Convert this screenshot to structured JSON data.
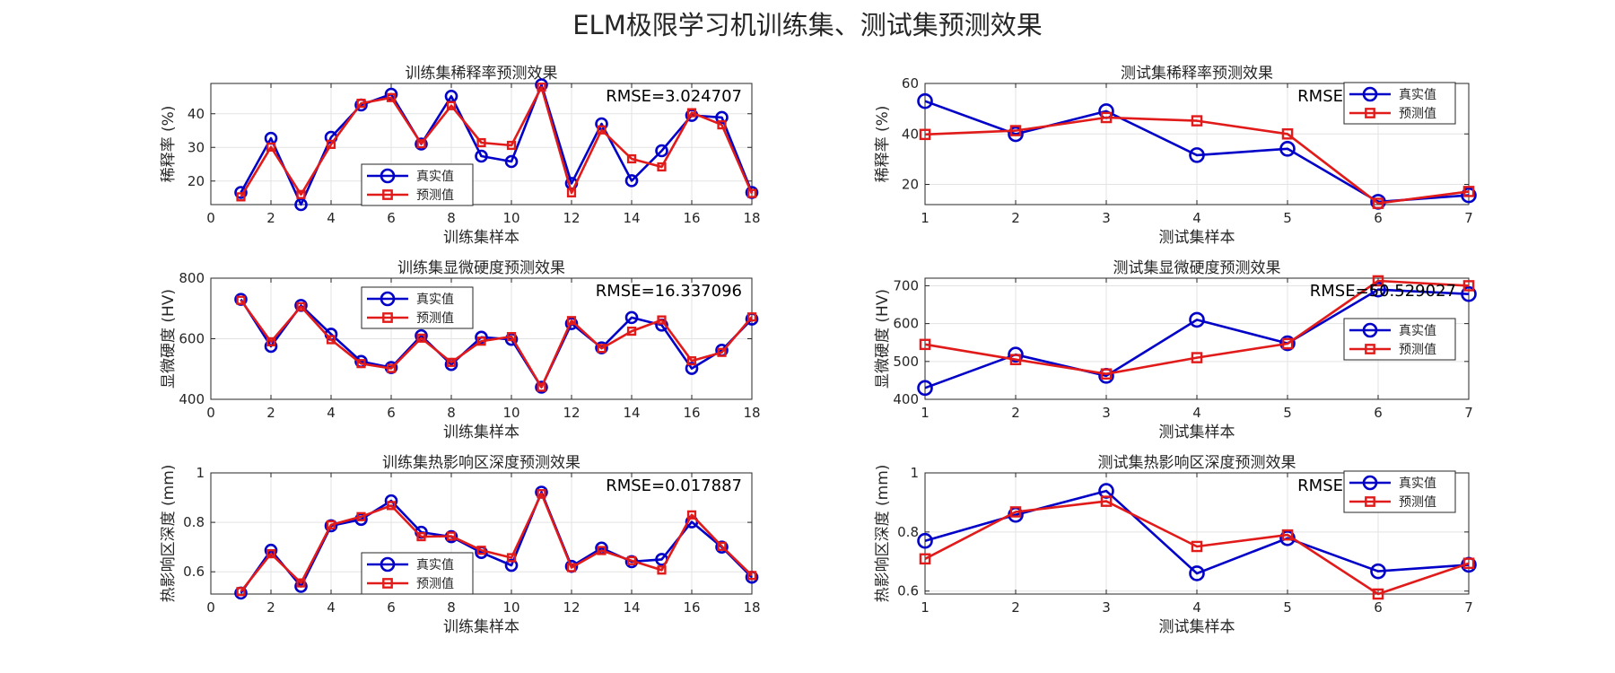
{
  "figure_title": "ELM极限学习机训练集、测试集预测效果",
  "colors": {
    "true": "#0000c8",
    "pred": "#e11a1a",
    "grid": "#e3e3e3",
    "axis": "#262626"
  },
  "chart_data": [
    {
      "id": "train-dilution",
      "type": "line",
      "title": "训练集稀释率预测效果",
      "xlabel": "训练集样本",
      "ylabel": "稀释率 (%)",
      "xlim": [
        0,
        18
      ],
      "ylim": [
        13,
        49
      ],
      "xticks": [
        0,
        2,
        4,
        6,
        8,
        10,
        12,
        14,
        16,
        18
      ],
      "yticks": [
        20,
        30,
        40
      ],
      "rmse": "RMSE=3.024707",
      "legend": "lower-center",
      "x": [
        1,
        2,
        3,
        4,
        5,
        6,
        7,
        8,
        9,
        10,
        11,
        12,
        13,
        14,
        15,
        16,
        17,
        18
      ],
      "series": [
        {
          "name": "真实值",
          "marker": "circle",
          "values": [
            16.6,
            32.7,
            13.0,
            33.0,
            42.6,
            45.8,
            31.0,
            45.2,
            27.4,
            25.8,
            48.6,
            19.3,
            37.0,
            20.1,
            29.0,
            39.5,
            38.9,
            16.6
          ]
        },
        {
          "name": "预测值",
          "marker": "square",
          "values": [
            15.3,
            30.1,
            16.0,
            30.9,
            43.1,
            44.8,
            31.1,
            42.4,
            31.4,
            30.6,
            47.9,
            16.5,
            35.2,
            26.6,
            24.2,
            40.3,
            36.7,
            16.3
          ]
        }
      ]
    },
    {
      "id": "test-dilution",
      "type": "line",
      "title": "测试集稀释率预测效果",
      "xlabel": "测试集样本",
      "ylabel": "稀释率 (%)",
      "xlim": [
        1,
        7
      ],
      "ylim": [
        12,
        60
      ],
      "xticks": [
        1,
        2,
        3,
        4,
        5,
        6,
        7
      ],
      "yticks": [
        20,
        40,
        60
      ],
      "rmse": "RMSE",
      "legend": "top-right",
      "x": [
        1,
        2,
        3,
        4,
        5,
        6,
        7
      ],
      "series": [
        {
          "name": "真实值",
          "marker": "circle",
          "values": [
            53.0,
            39.9,
            49.0,
            31.6,
            34.1,
            13.1,
            15.7
          ]
        },
        {
          "name": "预测值",
          "marker": "square",
          "values": [
            39.8,
            41.3,
            46.5,
            45.2,
            40.0,
            12.5,
            17.2
          ]
        }
      ]
    },
    {
      "id": "train-hardness",
      "type": "line",
      "title": "训练集显微硬度预测效果",
      "xlabel": "训练集样本",
      "ylabel": "显微硬度 (HV)",
      "xlim": [
        0,
        18
      ],
      "ylim": [
        400,
        800
      ],
      "xticks": [
        0,
        2,
        4,
        6,
        8,
        10,
        12,
        14,
        16,
        18
      ],
      "yticks": [
        400,
        600,
        800
      ],
      "rmse": "RMSE=16.337096",
      "legend": "top-center",
      "x": [
        1,
        2,
        3,
        4,
        5,
        6,
        7,
        8,
        9,
        10,
        11,
        12,
        13,
        14,
        15,
        16,
        17,
        18
      ],
      "series": [
        {
          "name": "真实值",
          "marker": "circle",
          "values": [
            730,
            575,
            710,
            615,
            525,
            505,
            610,
            515,
            605,
            598,
            440,
            650,
            570,
            670,
            645,
            502,
            562,
            665
          ]
        },
        {
          "name": "预测值",
          "marker": "square",
          "values": [
            727,
            590,
            706,
            597,
            518,
            502,
            602,
            522,
            592,
            607,
            440,
            660,
            568,
            625,
            662,
            527,
            555,
            672
          ]
        }
      ]
    },
    {
      "id": "test-hardness",
      "type": "line",
      "title": "测试集显微硬度预测效果",
      "xlabel": "测试集样本",
      "ylabel": "显微硬度 (HV)",
      "xlim": [
        1,
        7
      ],
      "ylim": [
        400,
        720
      ],
      "xticks": [
        1,
        2,
        3,
        4,
        5,
        6,
        7
      ],
      "yticks": [
        400,
        500,
        600,
        700
      ],
      "rmse": "RMSE=50.529027",
      "legend": "middle-right",
      "x": [
        1,
        2,
        3,
        4,
        5,
        6,
        7
      ],
      "series": [
        {
          "name": "真实值",
          "marker": "circle",
          "values": [
            430,
            518,
            462,
            610,
            548,
            690,
            678
          ]
        },
        {
          "name": "预测值",
          "marker": "square",
          "values": [
            545,
            505,
            467,
            510,
            547,
            713,
            700
          ]
        }
      ]
    },
    {
      "id": "train-haz-depth",
      "type": "line",
      "title": "训练集热影响区深度预测效果",
      "xlabel": "训练集样本",
      "ylabel": "热影响区深度 (mm)",
      "xlim": [
        0,
        18
      ],
      "ylim": [
        0.51,
        1.0
      ],
      "xticks": [
        0,
        2,
        4,
        6,
        8,
        10,
        12,
        14,
        16,
        18
      ],
      "yticks": [
        0.6,
        0.8,
        1
      ],
      "rmse": "RMSE=0.017887",
      "legend": "lower-center",
      "x": [
        1,
        2,
        3,
        4,
        5,
        6,
        7,
        8,
        9,
        10,
        11,
        12,
        13,
        14,
        15,
        16,
        17,
        18
      ],
      "series": [
        {
          "name": "真实值",
          "marker": "circle",
          "values": [
            0.514,
            0.687,
            0.541,
            0.786,
            0.812,
            0.887,
            0.76,
            0.742,
            0.678,
            0.626,
            0.922,
            0.622,
            0.696,
            0.641,
            0.65,
            0.802,
            0.7,
            0.578
          ]
        },
        {
          "name": "预测值",
          "marker": "square",
          "values": [
            0.52,
            0.673,
            0.555,
            0.79,
            0.823,
            0.868,
            0.742,
            0.744,
            0.687,
            0.657,
            0.916,
            0.617,
            0.686,
            0.645,
            0.607,
            0.83,
            0.703,
            0.585
          ]
        }
      ]
    },
    {
      "id": "test-haz-depth",
      "type": "line",
      "title": "测试集热影响区深度预测效果",
      "xlabel": "测试集样本",
      "ylabel": "热影响区深度 (mm)",
      "xlim": [
        1,
        7
      ],
      "ylim": [
        0.59,
        1.0
      ],
      "xticks": [
        1,
        2,
        3,
        4,
        5,
        6,
        7
      ],
      "yticks": [
        0.6,
        0.8,
        1
      ],
      "rmse": "RMSE",
      "legend": "top-right",
      "x": [
        1,
        2,
        3,
        4,
        5,
        6,
        7
      ],
      "series": [
        {
          "name": "真实值",
          "marker": "circle",
          "values": [
            0.77,
            0.858,
            0.939,
            0.66,
            0.779,
            0.667,
            0.689
          ]
        },
        {
          "name": "预测值",
          "marker": "square",
          "values": [
            0.709,
            0.868,
            0.904,
            0.751,
            0.79,
            0.59,
            0.694
          ]
        }
      ]
    }
  ]
}
